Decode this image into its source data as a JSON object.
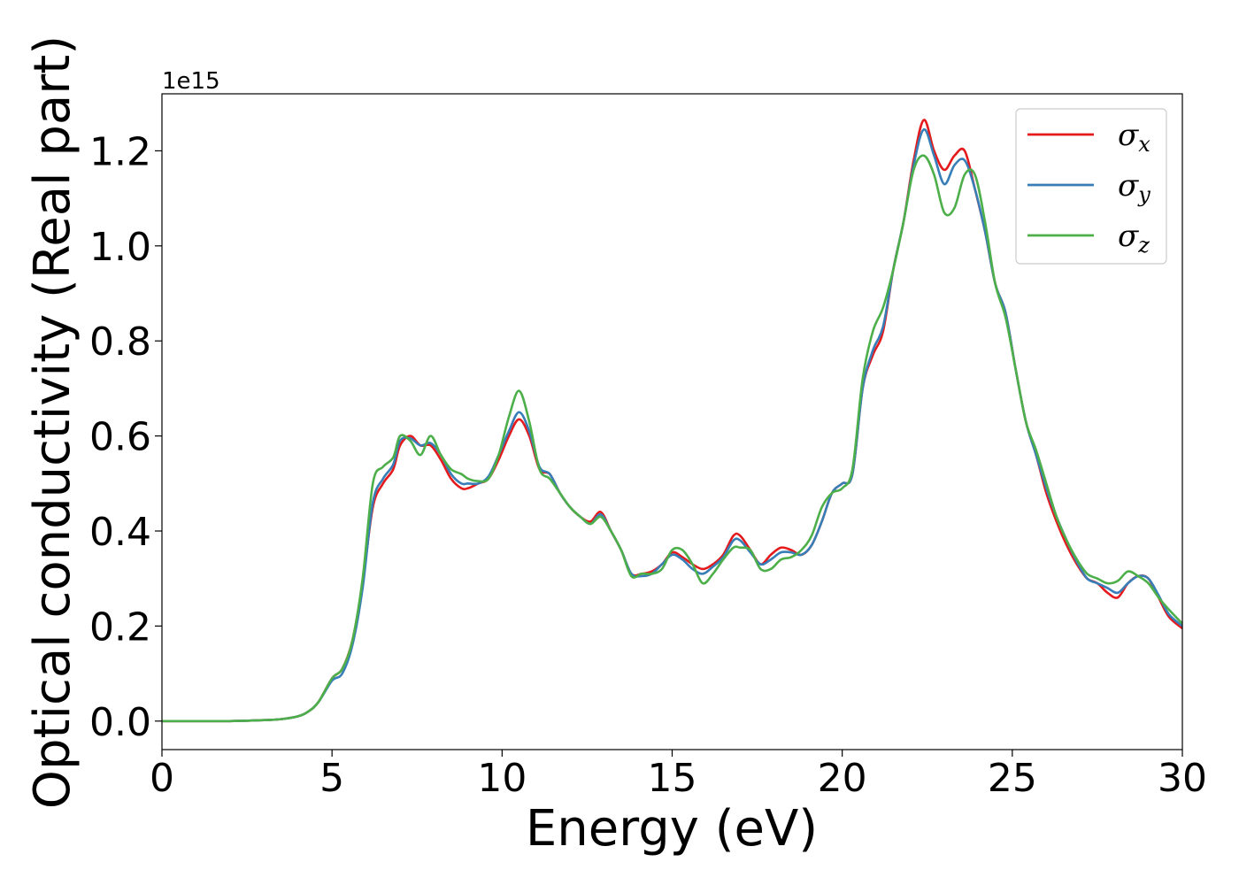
{
  "chart_data": {
    "type": "line",
    "xlabel": "Energy (eV)",
    "ylabel": "Optical conductivity (Real part)",
    "y_offset_text": "1e15",
    "xlim": [
      0,
      30
    ],
    "ylim": [
      -0.06,
      1.32
    ],
    "x_ticks": [
      0,
      5,
      10,
      15,
      20,
      25,
      30
    ],
    "x_tick_labels": [
      "0",
      "5",
      "10",
      "15",
      "20",
      "25",
      "30"
    ],
    "y_ticks": [
      0.0,
      0.2,
      0.4,
      0.6,
      0.8,
      1.0,
      1.2
    ],
    "y_tick_labels": [
      "0.0",
      "0.2",
      "0.4",
      "0.6",
      "0.8",
      "1.0",
      "1.2"
    ],
    "grid": false,
    "legend_position": "top-right",
    "series": [
      {
        "name": "σx",
        "symbol": "σ",
        "subscript": "x",
        "color": "#e41a1c",
        "x": [
          0,
          1,
          2,
          3,
          3.5,
          4,
          4.3,
          4.6,
          5,
          5.3,
          5.6,
          5.9,
          6.2,
          6.5,
          6.8,
          7.0,
          7.3,
          7.6,
          7.9,
          8.2,
          8.5,
          8.8,
          9.0,
          9.3,
          9.6,
          9.9,
          10.2,
          10.5,
          10.8,
          11.1,
          11.4,
          11.7,
          12.0,
          12.3,
          12.6,
          12.9,
          13.2,
          13.5,
          13.8,
          14.1,
          14.4,
          14.7,
          15.0,
          15.3,
          15.6,
          15.9,
          16.2,
          16.5,
          16.8,
          17.0,
          17.3,
          17.6,
          17.9,
          18.2,
          18.5,
          18.8,
          19.1,
          19.4,
          19.7,
          20.0,
          20.3,
          20.6,
          20.9,
          21.2,
          21.5,
          21.8,
          22.1,
          22.4,
          22.7,
          23.0,
          23.3,
          23.6,
          23.9,
          24.2,
          24.5,
          24.8,
          25.1,
          25.4,
          25.7,
          26.0,
          26.3,
          26.6,
          26.9,
          27.2,
          27.5,
          27.8,
          28.1,
          28.4,
          28.7,
          29.0,
          29.3,
          29.6,
          30.0
        ],
        "y": [
          0,
          0,
          0,
          0.002,
          0.004,
          0.01,
          0.02,
          0.04,
          0.09,
          0.11,
          0.17,
          0.29,
          0.45,
          0.5,
          0.53,
          0.58,
          0.6,
          0.58,
          0.58,
          0.55,
          0.51,
          0.49,
          0.49,
          0.5,
          0.51,
          0.55,
          0.6,
          0.635,
          0.6,
          0.53,
          0.52,
          0.48,
          0.45,
          0.43,
          0.42,
          0.44,
          0.4,
          0.36,
          0.31,
          0.31,
          0.315,
          0.33,
          0.355,
          0.345,
          0.33,
          0.32,
          0.33,
          0.35,
          0.39,
          0.39,
          0.36,
          0.33,
          0.35,
          0.365,
          0.36,
          0.35,
          0.37,
          0.42,
          0.48,
          0.5,
          0.52,
          0.7,
          0.77,
          0.82,
          0.95,
          1.05,
          1.18,
          1.265,
          1.2,
          1.16,
          1.19,
          1.2,
          1.12,
          1.03,
          0.92,
          0.86,
          0.74,
          0.63,
          0.56,
          0.48,
          0.42,
          0.37,
          0.33,
          0.3,
          0.29,
          0.27,
          0.26,
          0.29,
          0.305,
          0.3,
          0.26,
          0.22,
          0.195
        ]
      },
      {
        "name": "σy",
        "symbol": "σ",
        "subscript": "y",
        "color": "#377eb8",
        "x": [
          0,
          1,
          2,
          3,
          3.5,
          4,
          4.3,
          4.6,
          5,
          5.3,
          5.6,
          5.9,
          6.2,
          6.5,
          6.8,
          7.0,
          7.3,
          7.6,
          7.9,
          8.2,
          8.5,
          8.8,
          9.0,
          9.3,
          9.6,
          9.9,
          10.2,
          10.5,
          10.8,
          11.1,
          11.4,
          11.7,
          12.0,
          12.3,
          12.6,
          12.9,
          13.2,
          13.5,
          13.8,
          14.1,
          14.4,
          14.7,
          15.0,
          15.3,
          15.6,
          15.9,
          16.2,
          16.5,
          16.8,
          17.0,
          17.3,
          17.6,
          17.9,
          18.2,
          18.5,
          18.8,
          19.1,
          19.4,
          19.7,
          20.0,
          20.3,
          20.6,
          20.9,
          21.2,
          21.5,
          21.8,
          22.1,
          22.4,
          22.7,
          23.0,
          23.3,
          23.6,
          23.9,
          24.2,
          24.5,
          24.8,
          25.1,
          25.4,
          25.7,
          26.0,
          26.3,
          26.6,
          26.9,
          27.2,
          27.5,
          27.8,
          28.1,
          28.4,
          28.7,
          29.0,
          29.3,
          29.6,
          30.0
        ],
        "y": [
          0,
          0,
          0,
          0.002,
          0.004,
          0.01,
          0.02,
          0.04,
          0.085,
          0.1,
          0.16,
          0.28,
          0.46,
          0.51,
          0.54,
          0.59,
          0.595,
          0.58,
          0.585,
          0.56,
          0.52,
          0.5,
          0.5,
          0.5,
          0.515,
          0.56,
          0.61,
          0.65,
          0.61,
          0.535,
          0.52,
          0.48,
          0.45,
          0.43,
          0.415,
          0.435,
          0.4,
          0.36,
          0.31,
          0.305,
          0.31,
          0.33,
          0.35,
          0.34,
          0.32,
          0.31,
          0.325,
          0.345,
          0.38,
          0.38,
          0.355,
          0.33,
          0.34,
          0.355,
          0.355,
          0.35,
          0.37,
          0.42,
          0.48,
          0.5,
          0.52,
          0.7,
          0.78,
          0.83,
          0.95,
          1.05,
          1.17,
          1.245,
          1.19,
          1.13,
          1.17,
          1.18,
          1.12,
          1.03,
          0.92,
          0.86,
          0.74,
          0.63,
          0.56,
          0.49,
          0.43,
          0.38,
          0.335,
          0.3,
          0.29,
          0.28,
          0.27,
          0.29,
          0.305,
          0.3,
          0.265,
          0.225,
          0.2
        ]
      },
      {
        "name": "σz",
        "symbol": "σ",
        "subscript": "z",
        "color": "#4daf4a",
        "x": [
          0,
          1,
          2,
          3,
          3.5,
          4,
          4.3,
          4.6,
          5,
          5.3,
          5.6,
          5.9,
          6.2,
          6.5,
          6.8,
          7.0,
          7.3,
          7.6,
          7.9,
          8.2,
          8.5,
          8.8,
          9.0,
          9.3,
          9.6,
          9.9,
          10.2,
          10.5,
          10.8,
          11.1,
          11.4,
          11.7,
          12.0,
          12.3,
          12.6,
          12.9,
          13.2,
          13.5,
          13.8,
          14.1,
          14.4,
          14.7,
          15.0,
          15.3,
          15.6,
          15.9,
          16.2,
          16.5,
          16.8,
          17.0,
          17.3,
          17.6,
          17.9,
          18.2,
          18.5,
          18.8,
          19.1,
          19.4,
          19.7,
          20.0,
          20.3,
          20.6,
          20.9,
          21.2,
          21.5,
          21.8,
          22.1,
          22.4,
          22.7,
          23.0,
          23.3,
          23.6,
          23.9,
          24.2,
          24.5,
          24.8,
          25.1,
          25.4,
          25.7,
          26.0,
          26.3,
          26.6,
          26.9,
          27.2,
          27.5,
          27.8,
          28.1,
          28.4,
          28.7,
          29.0,
          29.3,
          29.6,
          30.0
        ],
        "y": [
          0,
          0,
          0,
          0.002,
          0.004,
          0.01,
          0.02,
          0.04,
          0.09,
          0.11,
          0.17,
          0.3,
          0.5,
          0.535,
          0.555,
          0.6,
          0.59,
          0.56,
          0.6,
          0.56,
          0.53,
          0.52,
          0.51,
          0.505,
          0.51,
          0.56,
          0.64,
          0.695,
          0.63,
          0.53,
          0.51,
          0.48,
          0.45,
          0.43,
          0.415,
          0.43,
          0.4,
          0.36,
          0.305,
          0.31,
          0.31,
          0.32,
          0.36,
          0.36,
          0.33,
          0.29,
          0.31,
          0.34,
          0.365,
          0.365,
          0.36,
          0.32,
          0.32,
          0.34,
          0.345,
          0.36,
          0.39,
          0.45,
          0.48,
          0.49,
          0.53,
          0.72,
          0.82,
          0.87,
          0.95,
          1.05,
          1.16,
          1.19,
          1.15,
          1.07,
          1.08,
          1.15,
          1.15,
          1.05,
          0.92,
          0.85,
          0.74,
          0.63,
          0.57,
          0.5,
          0.43,
          0.38,
          0.34,
          0.31,
          0.3,
          0.29,
          0.295,
          0.315,
          0.305,
          0.29,
          0.26,
          0.235,
          0.205
        ]
      }
    ]
  }
}
